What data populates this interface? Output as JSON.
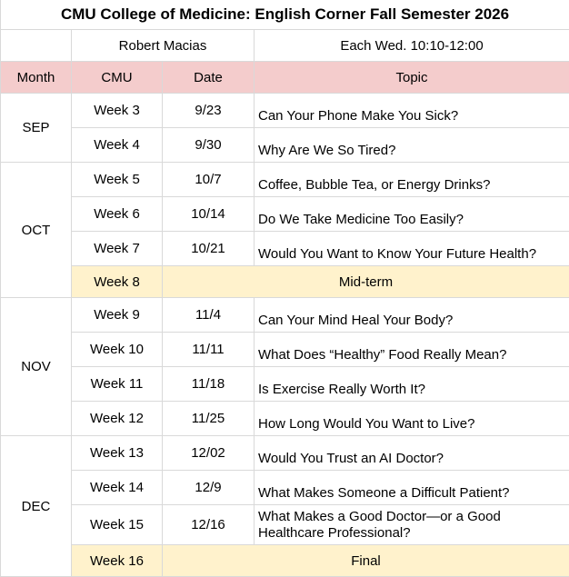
{
  "title": "CMU College of Medicine: English Corner Fall Semester 2026",
  "info": {
    "teacher": "Robert Macias",
    "time": "Each Wed. 10:10-12:00"
  },
  "headers": [
    "Month",
    "CMU",
    "Date",
    "Topic"
  ],
  "groups": [
    {
      "month": "SEP",
      "rows": [
        {
          "week": "Week 3",
          "date": "9/23",
          "topic": "Can Your Phone Make You Sick?"
        },
        {
          "week": "Week 4",
          "date": "9/30",
          "topic": "Why Are We So Tired?"
        }
      ]
    },
    {
      "month": "OCT",
      "rows": [
        {
          "week": "Week 5",
          "date": "10/7",
          "topic": "Coffee, Bubble Tea, or Energy Drinks?"
        },
        {
          "week": "Week 6",
          "date": "10/14",
          "topic": "Do We Take Medicine Too Easily?"
        },
        {
          "week": "Week 7",
          "date": "10/21",
          "topic": "Would You Want to Know Your Future Health?"
        },
        {
          "week": "Week 8",
          "event": "Mid-term"
        }
      ]
    },
    {
      "month": "NOV",
      "rows": [
        {
          "week": "Week 9",
          "date": "11/4",
          "topic": "Can Your Mind Heal Your Body?"
        },
        {
          "week": "Week 10",
          "date": "11/11",
          "topic": "What Does “Healthy” Food Really Mean?"
        },
        {
          "week": "Week 11",
          "date": "11/18",
          "topic": "Is Exercise Really Worth It?"
        },
        {
          "week": "Week 12",
          "date": "11/25",
          "topic": "How Long Would You Want to Live?"
        }
      ]
    },
    {
      "month": "DEC",
      "rows": [
        {
          "week": "Week 13",
          "date": "12/02",
          "topic": "Would You Trust an AI Doctor?"
        },
        {
          "week": "Week 14",
          "date": "12/9",
          "topic": "What Makes Someone a Difficult Patient?"
        },
        {
          "week": "Week 15",
          "date": "12/16",
          "topic": "What Makes a Good Doctor—or a Good Healthcare Professional?"
        },
        {
          "week": "Week 16",
          "event": "Final"
        }
      ]
    }
  ]
}
